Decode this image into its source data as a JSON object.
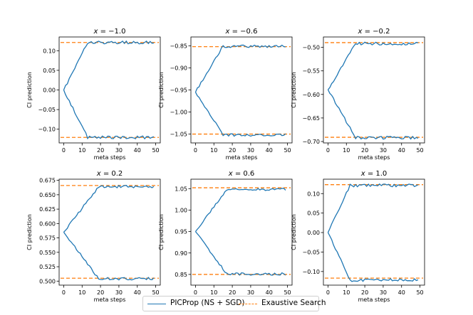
{
  "figure": {
    "legend": {
      "entries": [
        {
          "label": "PICProp (NS + SGD)",
          "color": "#1f77b4",
          "style": "solid"
        },
        {
          "label": "Exaustive Search",
          "color": "#ff7f0e",
          "style": "dashed"
        }
      ]
    }
  },
  "chart_data": [
    {
      "type": "line",
      "title": "x = −1.0",
      "title_var": "x",
      "title_value": "−1.0",
      "xlabel": "meta steps",
      "ylabel": "CI prediction",
      "xlim": [
        -2.5,
        52.5
      ],
      "ylim": [
        -0.135,
        0.135
      ],
      "xticks": [
        0,
        10,
        20,
        30,
        40,
        50
      ],
      "yticks": [
        -0.1,
        -0.05,
        0.0,
        0.05,
        0.1
      ],
      "ytick_labels": [
        "−0.10",
        "−0.05",
        "0.00",
        "0.05",
        "0.10"
      ],
      "start": 0.0,
      "upper": 0.121,
      "lower": -0.121,
      "converge_step": 13,
      "reference": {
        "name": "Exaustive Search",
        "upper": 0.121,
        "lower": -0.121
      }
    },
    {
      "type": "line",
      "title": "x = −0.6",
      "title_var": "x",
      "title_value": "−0.6",
      "xlabel": "meta steps",
      "ylabel": "CI prediction",
      "xlim": [
        -2.5,
        52.5
      ],
      "ylim": [
        -1.07,
        -0.83
      ],
      "xticks": [
        0,
        10,
        20,
        30,
        40,
        50
      ],
      "yticks": [
        -1.05,
        -1.0,
        -0.95,
        -0.9,
        -0.85
      ],
      "ytick_labels": [
        "−1.05",
        "−1.00",
        "−0.95",
        "−0.90",
        "−0.85"
      ],
      "start": -0.955,
      "upper": -0.851,
      "lower": -1.052,
      "converge_step": 15,
      "reference": {
        "name": "Exaustive Search",
        "upper": -0.852,
        "lower": -1.05
      }
    },
    {
      "type": "line",
      "title": "x = −0.2",
      "title_var": "x",
      "title_value": "−0.2",
      "xlabel": "meta steps",
      "ylabel": "CI prediction",
      "xlim": [
        -2.5,
        52.5
      ],
      "ylim": [
        -0.703,
        -0.478
      ],
      "xticks": [
        0,
        10,
        20,
        30,
        40,
        50
      ],
      "yticks": [
        -0.7,
        -0.65,
        -0.6,
        -0.55,
        -0.5
      ],
      "ytick_labels": [
        "−0.70",
        "−0.65",
        "−0.60",
        "−0.55",
        "−0.50"
      ],
      "start": -0.59,
      "upper": -0.492,
      "lower": -0.692,
      "converge_step": 15,
      "reference": {
        "name": "Exaustive Search",
        "upper": -0.49,
        "lower": -0.691
      }
    },
    {
      "type": "line",
      "title": "x = 0.2",
      "title_var": "x",
      "title_value": "0.2",
      "xlabel": "meta steps",
      "ylabel": "CI prediction",
      "xlim": [
        -2.5,
        52.5
      ],
      "ylim": [
        0.493,
        0.677
      ],
      "xticks": [
        0,
        10,
        20,
        30,
        40,
        50
      ],
      "yticks": [
        0.5,
        0.525,
        0.55,
        0.575,
        0.6,
        0.625,
        0.65,
        0.675
      ],
      "ytick_labels": [
        "0.500",
        "0.525",
        "0.550",
        "0.575",
        "0.600",
        "0.625",
        "0.650",
        "0.675"
      ],
      "start": 0.585,
      "upper": 0.664,
      "lower": 0.504,
      "converge_step": 19,
      "reference": {
        "name": "Exaustive Search",
        "upper": 0.666,
        "lower": 0.505
      }
    },
    {
      "type": "line",
      "title": "x = 0.6",
      "title_var": "x",
      "title_value": "0.6",
      "xlabel": "meta steps",
      "ylabel": "CI prediction",
      "xlim": [
        -2.5,
        52.5
      ],
      "ylim": [
        0.825,
        1.072
      ],
      "xticks": [
        0,
        10,
        20,
        30,
        40,
        50
      ],
      "yticks": [
        0.85,
        0.9,
        0.95,
        1.0,
        1.05
      ],
      "ytick_labels": [
        "0.85",
        "0.90",
        "0.95",
        "1.00",
        "1.05"
      ],
      "start": 0.95,
      "upper": 1.048,
      "lower": 0.851,
      "converge_step": 17,
      "reference": {
        "name": "Exaustive Search",
        "upper": 1.052,
        "lower": 0.85
      }
    },
    {
      "type": "line",
      "title": "x = 1.0",
      "title_var": "x",
      "title_value": "1.0",
      "xlabel": "meta steps",
      "ylabel": "CI prediction",
      "xlim": [
        -2.5,
        52.5
      ],
      "ylim": [
        -0.135,
        0.137
      ],
      "xticks": [
        0,
        10,
        20,
        30,
        40,
        50
      ],
      "yticks": [
        -0.1,
        -0.05,
        0.0,
        0.05,
        0.1
      ],
      "ytick_labels": [
        "−0.10",
        "−0.05",
        "0.00",
        "0.05",
        "0.10"
      ],
      "start": 0.0,
      "upper": 0.121,
      "lower": -0.122,
      "converge_step": 12,
      "reference": {
        "name": "Exaustive Search",
        "upper": 0.123,
        "lower": -0.117
      }
    }
  ]
}
